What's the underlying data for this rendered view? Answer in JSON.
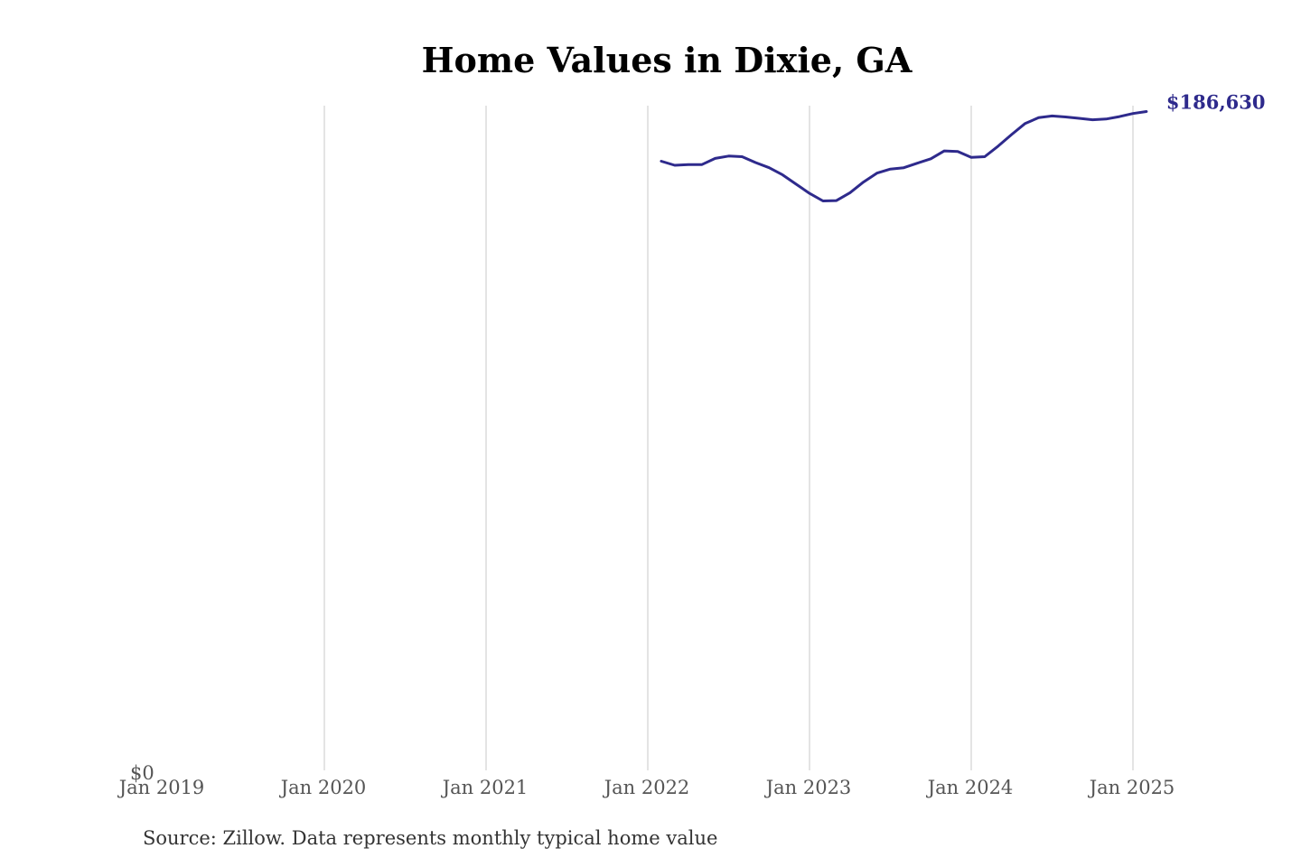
{
  "chart_data": {
    "type": "line",
    "title": "Home Values in Dixie, GA",
    "source": "Source: Zillow. Data represents monthly typical home value",
    "xlabel": "",
    "ylabel": "",
    "x_ticks": [
      "Jan 2019",
      "Jan 2020",
      "Jan 2021",
      "Jan 2022",
      "Jan 2023",
      "Jan 2024",
      "Jan 2025"
    ],
    "y_ticks": [
      "$0"
    ],
    "ylim": [
      0,
      186630
    ],
    "grid": "vertical",
    "line_color": "#2e2a8c",
    "end_label": "$186,630",
    "series": [
      {
        "x": [
          "2022-02",
          "2022-03",
          "2022-04",
          "2022-05",
          "2022-06",
          "2022-07",
          "2022-08",
          "2022-09",
          "2022-10",
          "2022-11",
          "2022-12",
          "2023-01",
          "2023-02",
          "2023-03",
          "2023-04",
          "2023-05",
          "2023-06",
          "2023-07",
          "2023-08",
          "2023-09",
          "2023-10",
          "2023-11",
          "2023-12",
          "2024-01",
          "2024-02",
          "2024-03",
          "2024-04",
          "2024-05",
          "2024-06",
          "2024-07",
          "2024-08",
          "2024-09",
          "2024-10",
          "2024-11",
          "2024-12",
          "2025-01",
          "2025-02"
        ],
        "values": [
          178300,
          177100,
          177300,
          177300,
          179100,
          179800,
          179600,
          177900,
          176400,
          174300,
          171600,
          168900,
          166700,
          166800,
          169100,
          172200,
          174800,
          176000,
          176400,
          177700,
          179000,
          181300,
          181100,
          179400,
          179600,
          182700,
          186100,
          189300,
          191000,
          191500,
          191200,
          190800,
          190400,
          190600,
          191300,
          192200,
          186630
        ]
      }
    ]
  }
}
